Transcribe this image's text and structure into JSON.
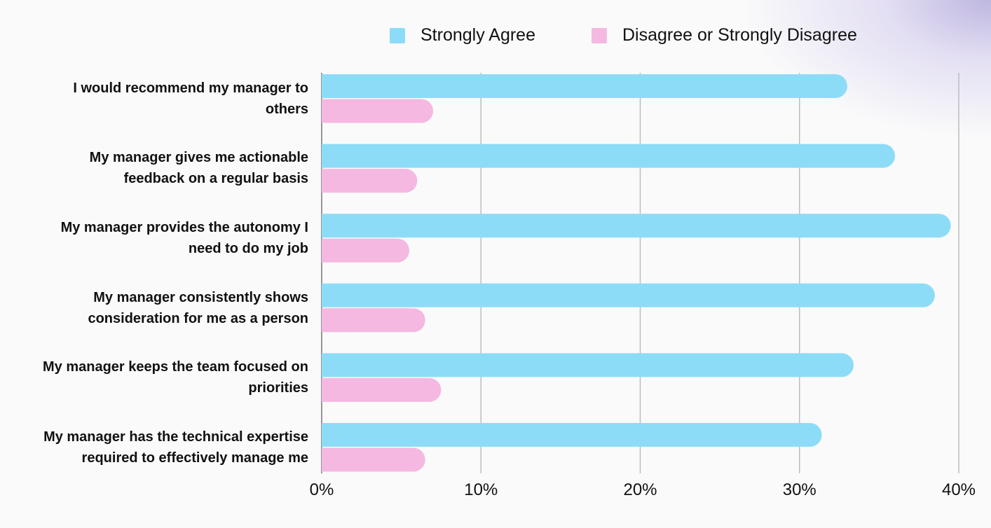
{
  "chart_data": {
    "type": "bar",
    "orientation": "horizontal",
    "categories": [
      "I would recommend my manager to others",
      "My manager gives me actionable feedback on a regular basis",
      "My manager provides the autonomy I need to do my job",
      "My manager consistently shows consideration for me as a person",
      "My manager keeps the team focused on priorities",
      "My manager has the technical expertise required to effectively manage me"
    ],
    "category_lines": [
      [
        "I would recommend my manager to",
        "others"
      ],
      [
        "My manager gives me actionable",
        "feedback on a regular basis"
      ],
      [
        "My manager provides the autonomy I",
        "need to do my job"
      ],
      [
        "My manager consistently shows",
        "consideration for me as a person"
      ],
      [
        "My manager keeps the team focused on",
        "priorities"
      ],
      [
        "My manager has the technical expertise",
        "required to effectively manage me"
      ]
    ],
    "series": [
      {
        "name": "Strongly Agree",
        "color": "#8ddcf7",
        "values": [
          33,
          36,
          39.5,
          38.5,
          33.4,
          31.4
        ]
      },
      {
        "name": "Disagree or Strongly Disagree",
        "color": "#f4b8e1",
        "values": [
          7,
          6,
          5.5,
          6.5,
          7.5,
          6.5
        ]
      }
    ],
    "xlim": [
      0,
      40
    ],
    "xticks": [
      0,
      10,
      20,
      30,
      40
    ],
    "xtick_labels": [
      "0%",
      "10%",
      "20%",
      "30%",
      "40%"
    ],
    "grid": true,
    "legend_position": "top"
  },
  "legend": {
    "items": [
      {
        "label": "Strongly Agree",
        "color": "#8ddcf7"
      },
      {
        "label": "Disagree or Strongly Disagree",
        "color": "#f4b8e1"
      }
    ]
  }
}
